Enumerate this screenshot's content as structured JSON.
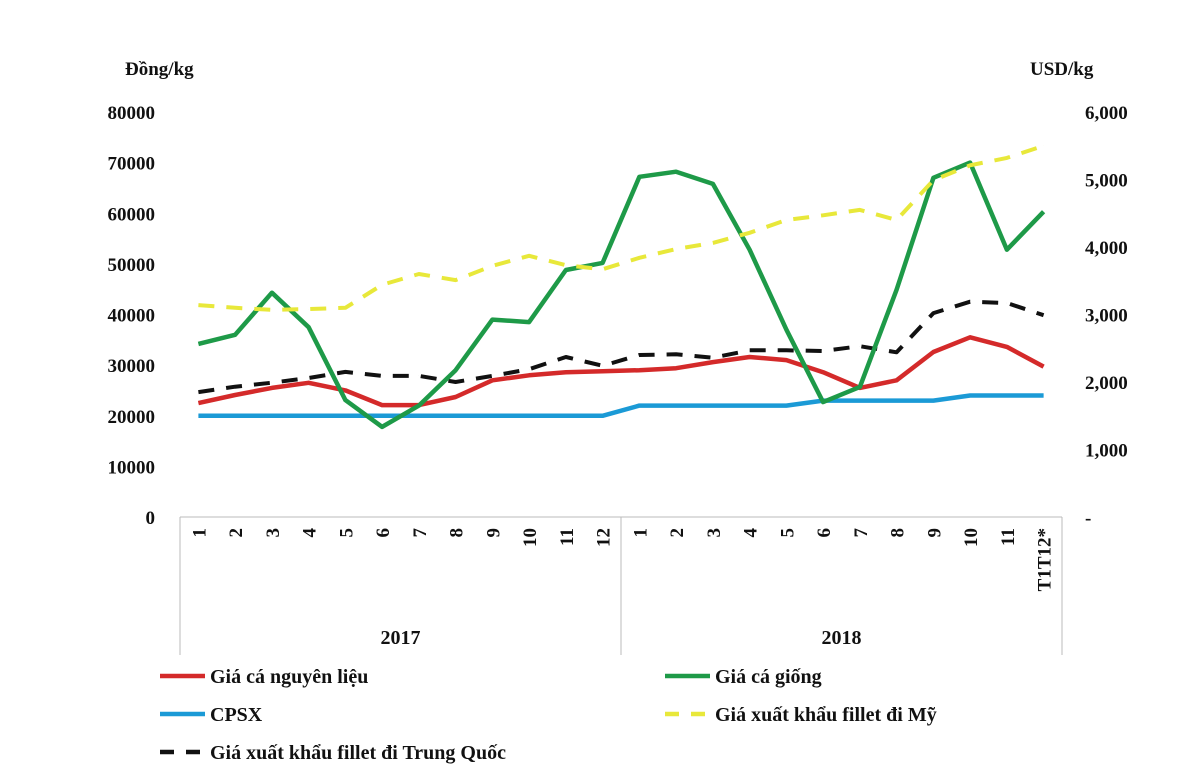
{
  "chart_data": {
    "type": "line",
    "title": "",
    "ylabel_left": "Đồng/kg",
    "ylabel_right": "USD/kg",
    "ylim_left": [
      0,
      80000
    ],
    "ylim_right": [
      0,
      6000
    ],
    "yticks_left": [
      "0",
      "10000",
      "20000",
      "30000",
      "40000",
      "50000",
      "60000",
      "70000",
      "80000"
    ],
    "yticks_right": [
      "-",
      "1,000",
      "2,000",
      "3,000",
      "4,000",
      "5,000",
      "6,000"
    ],
    "categories": [
      "1",
      "2",
      "3",
      "4",
      "5",
      "6",
      "7",
      "8",
      "9",
      "10",
      "11",
      "12",
      "1",
      "2",
      "3",
      "4",
      "5",
      "6",
      "7",
      "8",
      "9",
      "10",
      "11",
      "T1T12*"
    ],
    "groups": [
      {
        "label": "2017",
        "count": 12
      },
      {
        "label": "2018",
        "count": 12
      }
    ],
    "grid": false,
    "legend_position": "bottom",
    "series": [
      {
        "name": "Giá cá nguyên  liệu",
        "axis": "left",
        "color": "#d42a2a",
        "dash": false,
        "values": [
          22500,
          24100,
          25500,
          26500,
          25000,
          22100,
          22100,
          23700,
          27000,
          28000,
          28600,
          28800,
          29000,
          29400,
          30600,
          31600,
          31000,
          28600,
          25500,
          27000,
          32600,
          35500,
          33600,
          29700
        ]
      },
      {
        "name": "Giá cá giống",
        "axis": "left",
        "color": "#1e9a48",
        "dash": false,
        "values": [
          34200,
          36000,
          44300,
          37500,
          23100,
          17800,
          22000,
          29000,
          39000,
          38500,
          48800,
          50200,
          67200,
          68200,
          65800,
          52800,
          37000,
          22700,
          25700,
          44900,
          67000,
          70000,
          52800,
          60300
        ]
      },
      {
        "name": "CPSX",
        "axis": "left",
        "color": "#1b9ad6",
        "dash": false,
        "values": [
          20000,
          20000,
          20000,
          20000,
          20000,
          20000,
          20000,
          20000,
          20000,
          20000,
          20000,
          20000,
          22000,
          22000,
          22000,
          22000,
          22000,
          23000,
          23000,
          23000,
          23000,
          24000,
          24000,
          24000
        ]
      },
      {
        "name": "Giá xuất  khẩu fillet  đi Mỹ",
        "axis": "right",
        "color": "#e8e83a",
        "dash": true,
        "values": [
          3140,
          3100,
          3070,
          3080,
          3100,
          3440,
          3600,
          3510,
          3720,
          3870,
          3730,
          3670,
          3840,
          3970,
          4060,
          4210,
          4400,
          4470,
          4550,
          4400,
          4990,
          5210,
          5320,
          5500
        ]
      },
      {
        "name": "Giá xuất  khẩu fillet  đi Trung  Quốc",
        "axis": "right",
        "color": "#111111",
        "dash": true,
        "values": [
          1850,
          1930,
          1990,
          2060,
          2150,
          2090,
          2090,
          2000,
          2090,
          2190,
          2370,
          2240,
          2400,
          2410,
          2360,
          2470,
          2470,
          2460,
          2530,
          2440,
          3020,
          3190,
          3170,
          2990
        ]
      }
    ]
  }
}
